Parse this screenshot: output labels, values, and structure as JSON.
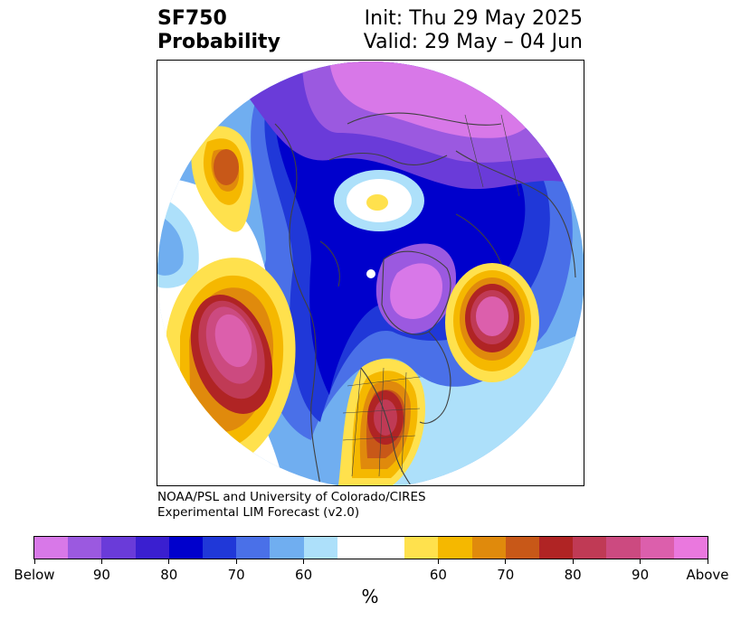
{
  "title": {
    "left_line1": "SF750",
    "left_line2": "Probability",
    "right_line1": "Init: Thu 29 May 2025",
    "right_line2": "Valid: 29 May – 04 Jun"
  },
  "credit": {
    "line1": "NOAA/PSL and University of Colorado/CIRES",
    "line2": "Experimental LIM Forecast (v2.0)"
  },
  "colorbar": {
    "below_colors": [
      "#d878e8",
      "#9b59e0",
      "#6a3bd9",
      "#3a1fd0",
      "#0000cc",
      "#2038d8",
      "#4a70e8",
      "#70aef0",
      "#ade0fa"
    ],
    "neutral_color": "#ffffff",
    "above_colors": [
      "#ffe14d",
      "#f5b800",
      "#e08a0c",
      "#c85818",
      "#b02424",
      "#c03a55",
      "#cc4a80",
      "#dc5fac",
      "#ea78de"
    ],
    "tick_labels": [
      "Below",
      "90",
      "80",
      "70",
      "60",
      "60",
      "70",
      "80",
      "90",
      "Above"
    ],
    "unit": "%"
  },
  "map": {
    "projection": "north-polar-stereographic",
    "features": [
      {
        "name": "polar-below-region",
        "category": "Below",
        "level": "Below"
      },
      {
        "name": "north-pacific-above-anomaly",
        "category": "Above",
        "level": "Above"
      },
      {
        "name": "alaska-gulf-above-anomaly",
        "category": "Above",
        "level": "70"
      },
      {
        "name": "north-atlantic-above-anomaly",
        "category": "Above",
        "level": "Above"
      },
      {
        "name": "central-us-above-anomaly",
        "category": "Above",
        "level": "80"
      },
      {
        "name": "arctic-small-above-anomaly",
        "category": "Above",
        "level": "60"
      }
    ]
  }
}
